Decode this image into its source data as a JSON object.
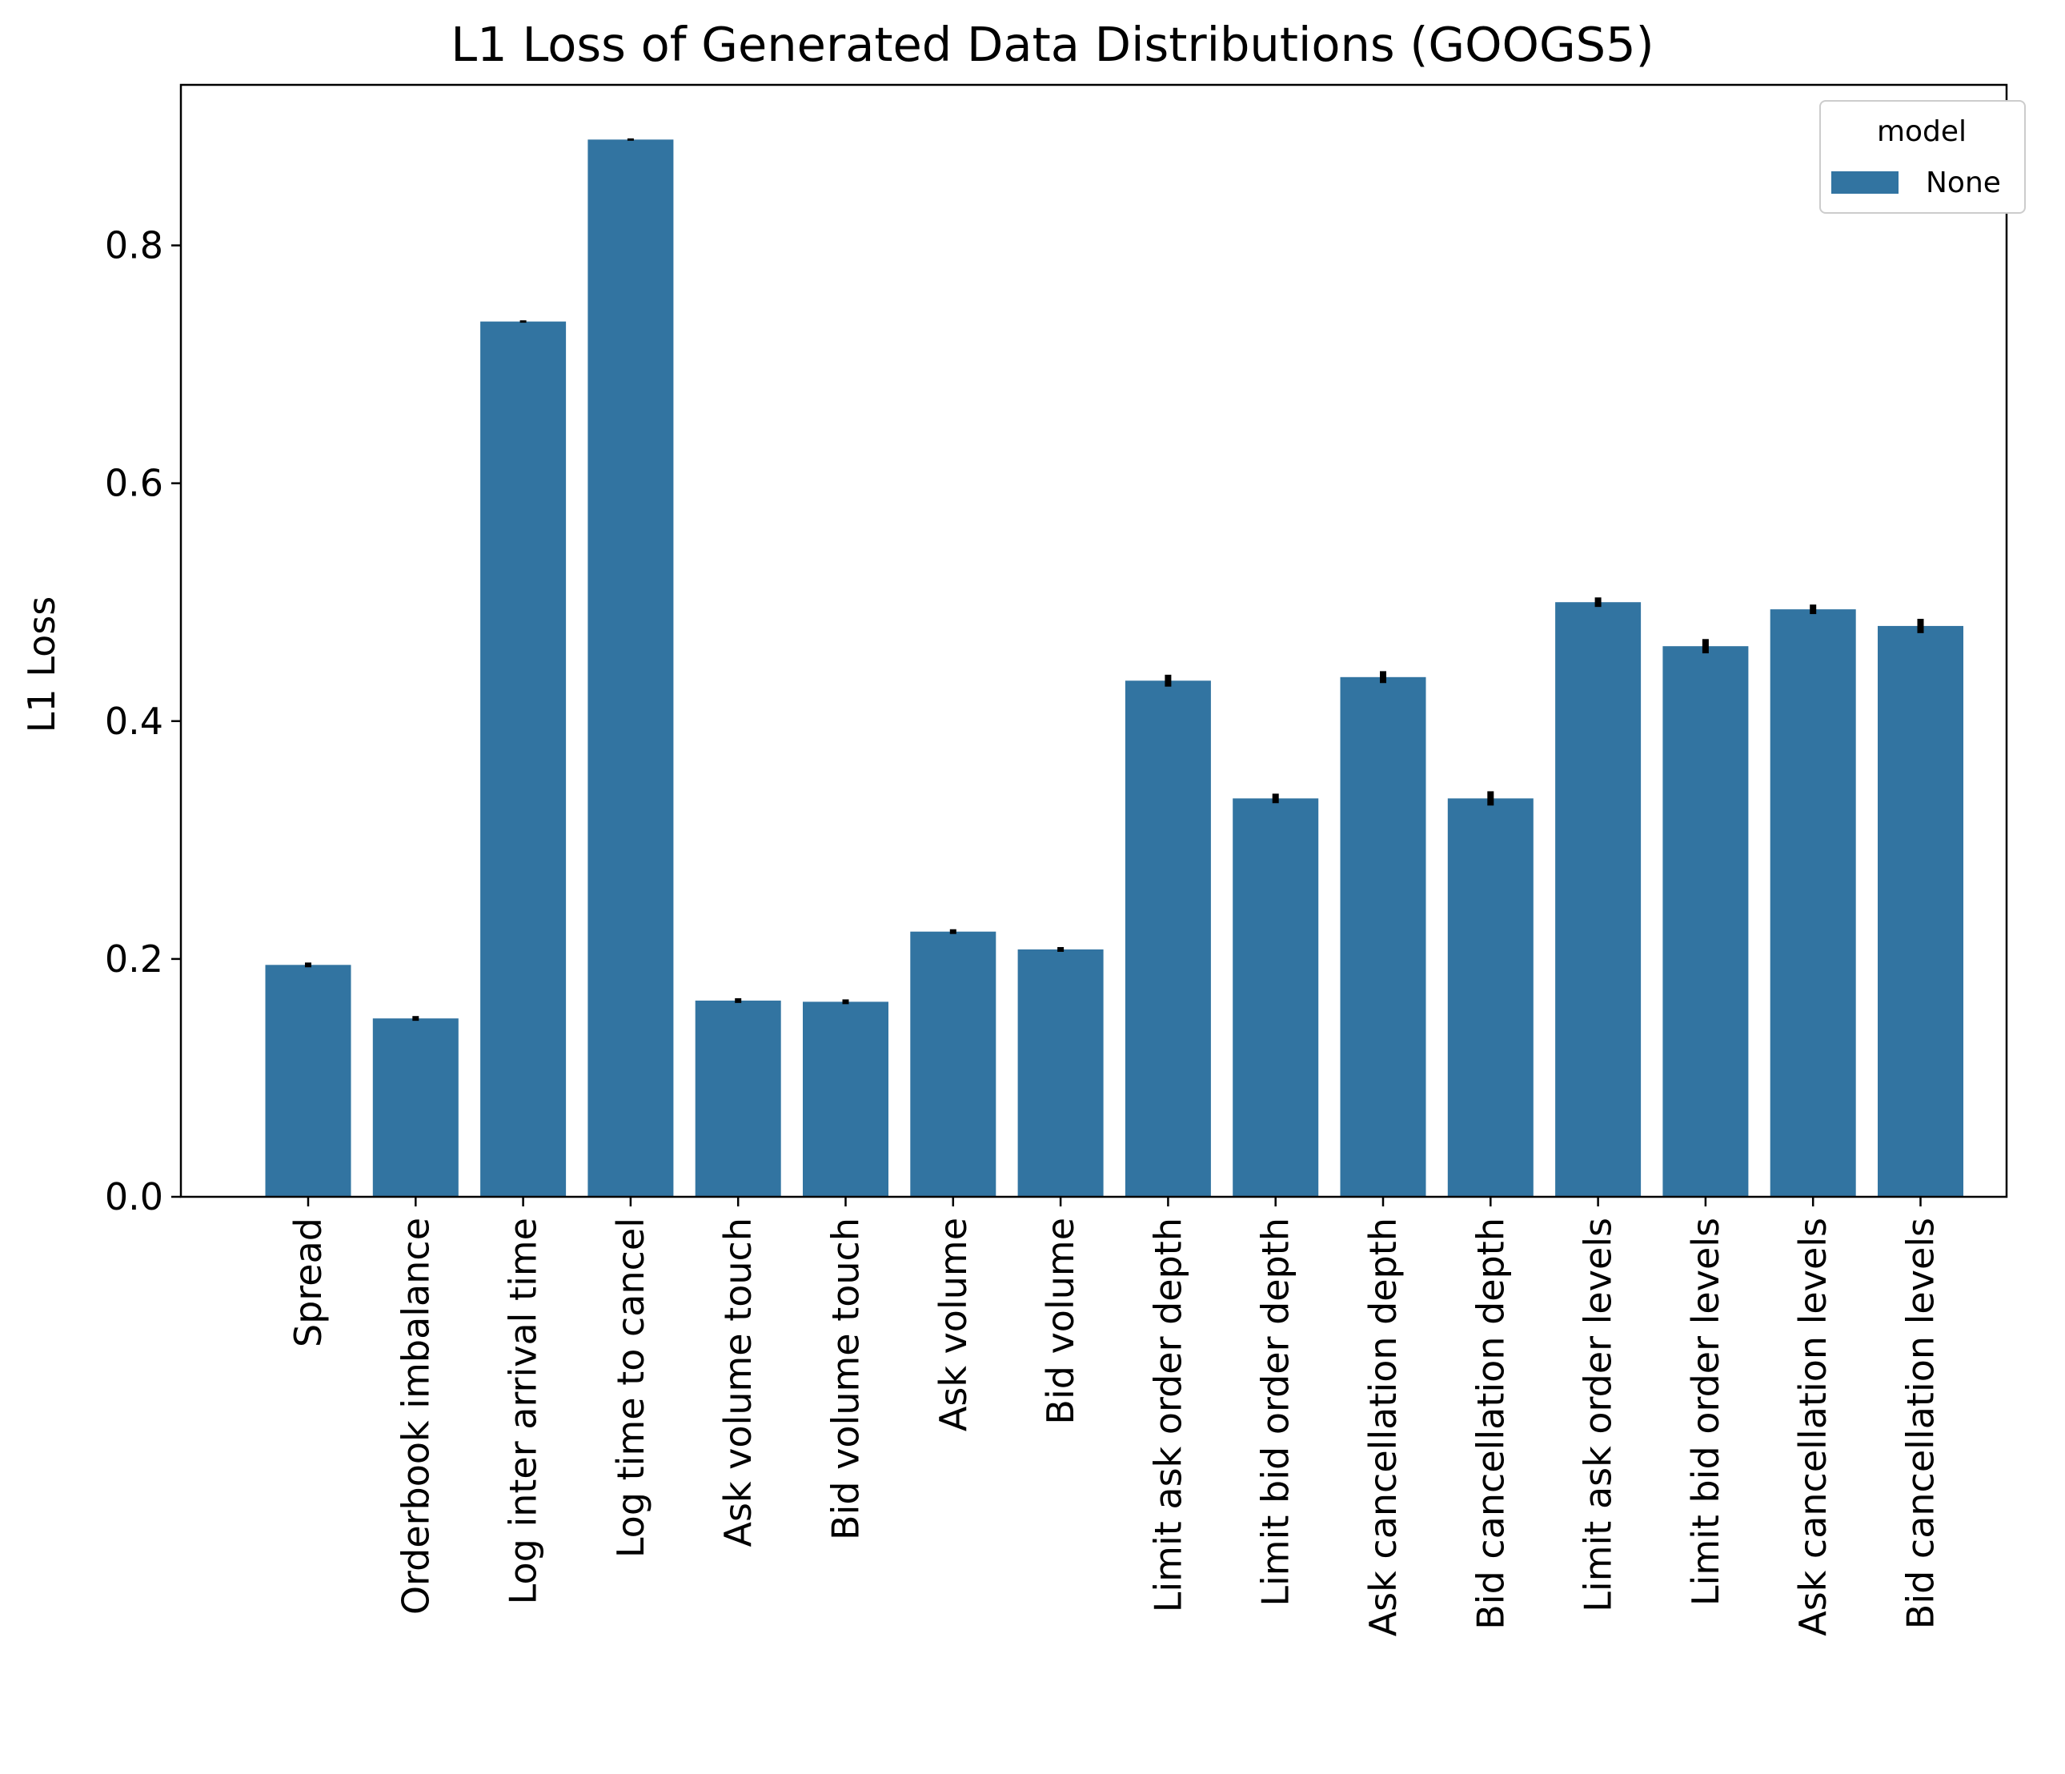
{
  "chart_data": {
    "type": "bar",
    "title": "L1 Loss of Generated Data Distributions (GOOGS5)",
    "xlabel": "",
    "ylabel": "L1 Loss",
    "ylim": [
      0,
      0.935
    ],
    "yticks": [
      0.0,
      0.2,
      0.4,
      0.6,
      0.8
    ],
    "ytick_labels": [
      "0.0",
      "0.2",
      "0.4",
      "0.6",
      "0.8"
    ],
    "categories": [
      "Spread",
      "Orderbook imbalance",
      "Log inter arrival time",
      "Log time to cancel",
      "Ask volume touch",
      "Bid volume touch",
      "Ask volume",
      "Bid volume",
      "Limit ask order depth",
      "Limit bid order depth",
      "Ask cancellation depth",
      "Bid cancellation depth",
      "Limit ask order levels",
      "Limit bid order levels",
      "Ask cancellation levels",
      "Bid cancellation levels"
    ],
    "series": [
      {
        "name": "None",
        "color": "#3274a1",
        "values": [
          0.195,
          0.15,
          0.736,
          0.889,
          0.165,
          0.164,
          0.223,
          0.208,
          0.434,
          0.335,
          0.437,
          0.335,
          0.5,
          0.463,
          0.494,
          0.48
        ],
        "errors": [
          0.002,
          0.002,
          0.001,
          0.001,
          0.002,
          0.002,
          0.002,
          0.002,
          0.005,
          0.004,
          0.005,
          0.006,
          0.004,
          0.006,
          0.004,
          0.006
        ]
      }
    ],
    "legend": {
      "title": "model",
      "placement": "top-right",
      "entries": [
        "None"
      ]
    },
    "grid": false
  }
}
